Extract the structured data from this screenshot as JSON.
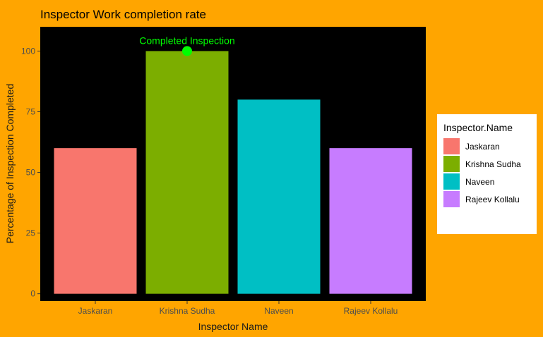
{
  "chart_data": {
    "type": "bar",
    "title": "Inspector Work completion rate",
    "xlabel": "Inspector Name",
    "ylabel": "Percentage of Inspection Completed",
    "categories": [
      "Jaskaran",
      "Krishna Sudha",
      "Naveen",
      "Rajeev Kollalu"
    ],
    "values": [
      60,
      100,
      80,
      60
    ],
    "colors": [
      "#F8766D",
      "#7CAE00",
      "#00BFC4",
      "#C77CFF"
    ],
    "y_ticks": [
      0,
      25,
      50,
      75,
      100
    ],
    "ylim": [
      -3,
      110
    ],
    "grid": false,
    "legend": {
      "title": "Inspector.Name",
      "placement": "right",
      "entries": [
        "Jaskaran",
        "Krishna Sudha",
        "Naveen",
        "Rajeev Kollalu"
      ]
    },
    "annotation": {
      "text": "Completed Inspection",
      "category": "Krishna Sudha",
      "y": 100,
      "color": "#00FF00"
    }
  },
  "style": {
    "background": "#FFA500",
    "panel_background": "#000000",
    "legend_background": "#FFFFFF"
  }
}
